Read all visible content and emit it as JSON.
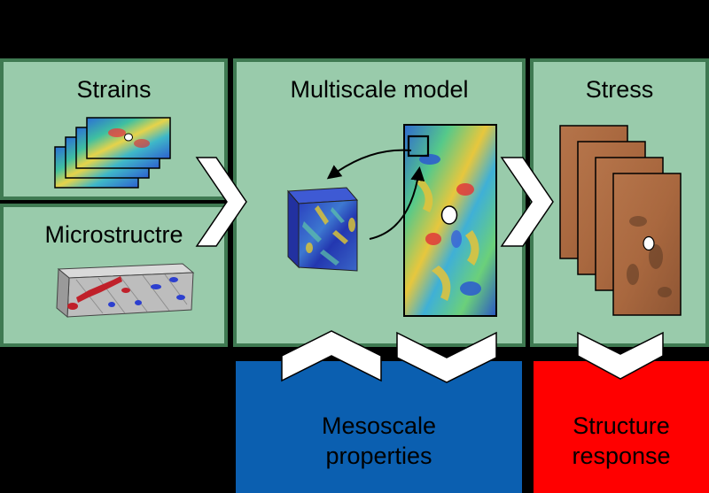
{
  "panels": {
    "strains": {
      "title": "Strains"
    },
    "microstructure": {
      "title": "Microstructre"
    },
    "multiscale": {
      "title": "Multiscale model"
    },
    "stress": {
      "title": "Stress"
    }
  },
  "outputs": {
    "mesoscale": {
      "line1": "Mesoscale",
      "line2": "properties"
    },
    "structure": {
      "line1": "Structure",
      "line2": "response"
    }
  },
  "colors": {
    "panel_fill": "#99cbab",
    "panel_border": "#3f7a52",
    "mesoscale_box": "#0b5fb0",
    "structure_box": "#ff0000",
    "background": "#000000"
  }
}
